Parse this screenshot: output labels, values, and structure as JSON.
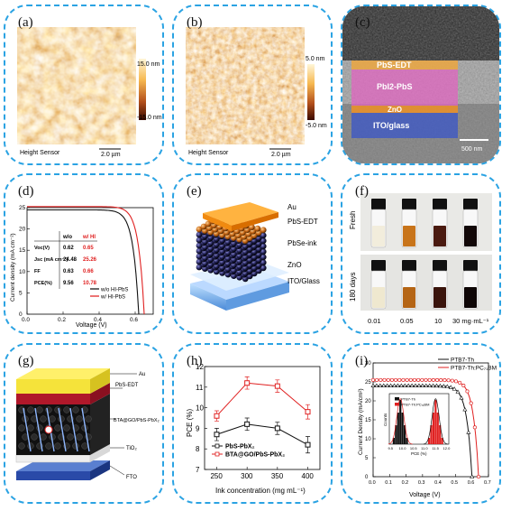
{
  "panels": {
    "a": {
      "label": "(a)",
      "scale_top": "15.0 nm",
      "scale_bottom": "-15.0 nm",
      "sensor": "Height Sensor",
      "scalebar": "2.0 µm"
    },
    "b": {
      "label": "(b)",
      "scale_top": "5.0 nm",
      "scale_bottom": "-5.0 nm",
      "sensor": "Height Sensor",
      "scalebar": "2.0 µm"
    },
    "c": {
      "label": "(c)",
      "layers": [
        "PbS-EDT",
        "PbI2-PbS",
        "ZnO",
        "ITO/glass"
      ],
      "scalebar": "500 nm"
    },
    "d": {
      "label": "(d)"
    },
    "e": {
      "label": "(e)",
      "layers": [
        "Au",
        "PbS-EDT",
        "PbSe-ink",
        "ZnO",
        "ITO/Glass"
      ]
    },
    "f": {
      "label": "(f)",
      "row_labels": [
        "Fresh",
        "180 days"
      ],
      "concentrations": [
        "0.01",
        "0.05",
        "10",
        "30 mg·mL⁻¹"
      ]
    },
    "g": {
      "label": "(g)",
      "layers": [
        "Au",
        "PbS-EDT",
        "BTA@GO/PbS-PbX₂",
        "TiO₂",
        "FTO"
      ]
    },
    "h": {
      "label": "(h)"
    },
    "i": {
      "label": "(i)"
    }
  },
  "chart_data": [
    {
      "panel": "d",
      "type": "line",
      "xlabel": "Voltage (V)",
      "ylabel": "Current density (mA cm⁻²)",
      "xlim": [
        0,
        0.7
      ],
      "ylim": [
        0,
        25
      ],
      "xticks": [
        "0.0",
        "0.2",
        "0.4",
        "0.6"
      ],
      "yticks": [
        "0",
        "5",
        "10",
        "15",
        "20",
        "25"
      ],
      "series": [
        {
          "name": "w/o HI-PbS",
          "color": "#111111",
          "voc": 0.62,
          "jsc": 24.48
        },
        {
          "name": "w/ HI-PbS",
          "color": "#e02020",
          "voc": 0.65,
          "jsc": 25.26
        }
      ],
      "table": {
        "header": [
          "",
          "w/o",
          "w/ HI"
        ],
        "rows": [
          [
            "Voc(V)",
            "0.62",
            "0.65"
          ],
          [
            "Jsc (mA cm⁻²)",
            "24.48",
            "25.26"
          ],
          [
            "FF",
            "0.63",
            "0.66"
          ],
          [
            "PCE(%)",
            "9.56",
            "10.78"
          ]
        ]
      }
    },
    {
      "panel": "h",
      "type": "line",
      "xlabel": "Ink concentration (mg mL⁻¹)",
      "ylabel": "PCE (%)",
      "x": [
        250,
        300,
        350,
        400
      ],
      "xlim": [
        230,
        420
      ],
      "ylim": [
        7,
        12
      ],
      "yticks": [
        7,
        8,
        9,
        10,
        11,
        12
      ],
      "series": [
        {
          "name": "PbS-PbX₂",
          "color": "#111111",
          "values": [
            8.7,
            9.2,
            9.0,
            8.2
          ],
          "err": [
            0.3,
            0.3,
            0.3,
            0.4
          ]
        },
        {
          "name": "BTA@GO/PbS-PbX₂",
          "color": "#e02020",
          "values": [
            9.6,
            11.2,
            11.05,
            9.8
          ],
          "err": [
            0.25,
            0.3,
            0.3,
            0.35
          ]
        }
      ]
    },
    {
      "panel": "i",
      "type": "line",
      "xlabel": "Voltage (V)",
      "ylabel": "Current Density (mA/cm²)",
      "xlim": [
        0,
        0.7
      ],
      "ylim": [
        0,
        30
      ],
      "xticks": [
        "0.0",
        "0.1",
        "0.2",
        "0.3",
        "0.4",
        "0.5",
        "0.6",
        "0.7"
      ],
      "yticks": [
        "0",
        "5",
        "10",
        "15",
        "20",
        "25",
        "30"
      ],
      "series": [
        {
          "name": "PTB7-Th",
          "color": "#111111",
          "voc": 0.6,
          "jsc": 24
        },
        {
          "name": "PTB7-Th:PC₇₁BM",
          "color": "#e02020",
          "voc": 0.64,
          "jsc": 25.5
        }
      ],
      "inset": {
        "type": "bar",
        "xlabel": "PCE (%)",
        "ylabel": "Counts",
        "xticks": [
          "9.5",
          "10.0",
          "10.5",
          "11.0",
          "11.5",
          "12.0"
        ],
        "series": [
          {
            "name": "PTB7-Th",
            "color": "#111111",
            "x": [
              9.6,
              9.7,
              9.8,
              9.9,
              10.0,
              10.1,
              10.2
            ],
            "values": [
              1,
              3,
              5,
              7,
              5,
              3,
              1
            ]
          },
          {
            "name": "PTB7-Th:PC₇₁BM",
            "color": "#e02020",
            "x": [
              11.2,
              11.3,
              11.4,
              11.5,
              11.6,
              11.7,
              11.8
            ],
            "values": [
              1,
              3,
              5,
              7,
              5,
              3,
              1
            ]
          }
        ]
      }
    }
  ]
}
